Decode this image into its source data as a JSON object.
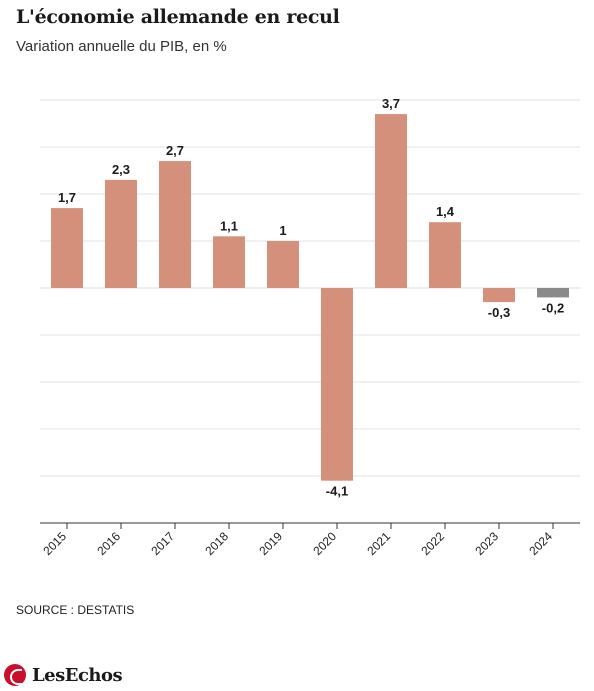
{
  "header": {
    "title": "L'économie allemande en recul",
    "subtitle": "Variation annuelle du PIB, en %"
  },
  "footer": {
    "source": "SOURCE : DESTATIS",
    "logo_text": "LesEchos"
  },
  "colors": {
    "bar": "#d4907a",
    "bar_highlight": "#8a8a8a",
    "grid": "#e3e3e3",
    "axis": "#333333"
  },
  "chart_data": {
    "type": "bar",
    "title": "L'économie allemande en recul",
    "subtitle": "Variation annuelle du PIB, en %",
    "categories": [
      "2015",
      "2016",
      "2017",
      "2018",
      "2019",
      "2020",
      "2021",
      "2022",
      "2023",
      "2024"
    ],
    "values": [
      1.7,
      2.3,
      2.7,
      1.1,
      1.0,
      -4.1,
      3.7,
      1.4,
      -0.3,
      -0.2
    ],
    "labels": [
      "1,7",
      "2,3",
      "2,7",
      "1,1",
      "1",
      "-4,1",
      "3,7",
      "1,4",
      "-0,3",
      "-0,2"
    ],
    "highlight_index": 9,
    "ylim": [
      -5,
      4
    ],
    "grid": true,
    "xlabel": "",
    "ylabel": ""
  }
}
